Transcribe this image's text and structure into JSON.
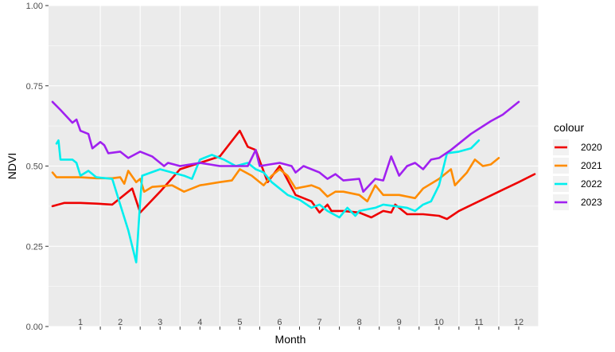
{
  "chart_data": {
    "type": "line",
    "xlabel": "Month",
    "ylabel": "NDVI",
    "ylim": [
      0,
      1
    ],
    "xlim": [
      0.2,
      12.5
    ],
    "y_ticks": [
      "0.00",
      "0.25",
      "0.50",
      "0.75",
      "1.00"
    ],
    "month_labels": [
      "1",
      "2",
      "3",
      "4",
      "5",
      "6",
      "7",
      "8",
      "9",
      "10",
      "11",
      "12"
    ],
    "legend": {
      "title": "colour",
      "position": "right"
    },
    "grid": true,
    "series": [
      {
        "name": "2020",
        "color": "#ee0000",
        "points": [
          [
            0.3,
            0.375
          ],
          [
            0.6,
            0.385
          ],
          [
            1.0,
            0.385
          ],
          [
            1.4,
            0.383
          ],
          [
            1.8,
            0.38
          ],
          [
            2.3,
            0.43
          ],
          [
            2.5,
            0.355
          ],
          [
            3.0,
            0.42
          ],
          [
            3.5,
            0.49
          ],
          [
            4.0,
            0.51
          ],
          [
            4.5,
            0.53
          ],
          [
            5.0,
            0.61
          ],
          [
            5.2,
            0.56
          ],
          [
            5.4,
            0.55
          ],
          [
            5.7,
            0.45
          ],
          [
            6.0,
            0.5
          ],
          [
            6.1,
            0.48
          ],
          [
            6.4,
            0.41
          ],
          [
            6.8,
            0.39
          ],
          [
            7.0,
            0.355
          ],
          [
            7.2,
            0.38
          ],
          [
            7.3,
            0.36
          ],
          [
            7.6,
            0.36
          ],
          [
            8.0,
            0.355
          ],
          [
            8.3,
            0.34
          ],
          [
            8.6,
            0.36
          ],
          [
            8.8,
            0.355
          ],
          [
            8.9,
            0.38
          ],
          [
            9.2,
            0.35
          ],
          [
            9.6,
            0.35
          ],
          [
            10.0,
            0.345
          ],
          [
            10.2,
            0.335
          ],
          [
            10.5,
            0.36
          ],
          [
            11.0,
            0.39
          ],
          [
            11.5,
            0.42
          ],
          [
            12.0,
            0.45
          ],
          [
            12.4,
            0.475
          ]
        ]
      },
      {
        "name": "2021",
        "color": "#ff8c00",
        "points": [
          [
            0.3,
            0.48
          ],
          [
            0.4,
            0.465
          ],
          [
            0.8,
            0.465
          ],
          [
            1.0,
            0.465
          ],
          [
            1.4,
            0.462
          ],
          [
            1.8,
            0.462
          ],
          [
            2.0,
            0.465
          ],
          [
            2.1,
            0.445
          ],
          [
            2.2,
            0.485
          ],
          [
            2.4,
            0.45
          ],
          [
            2.5,
            0.46
          ],
          [
            2.6,
            0.42
          ],
          [
            2.8,
            0.435
          ],
          [
            3.3,
            0.44
          ],
          [
            3.6,
            0.42
          ],
          [
            4.0,
            0.44
          ],
          [
            4.5,
            0.45
          ],
          [
            4.8,
            0.455
          ],
          [
            5.0,
            0.49
          ],
          [
            5.3,
            0.47
          ],
          [
            5.6,
            0.44
          ],
          [
            5.8,
            0.47
          ],
          [
            6.0,
            0.49
          ],
          [
            6.2,
            0.47
          ],
          [
            6.4,
            0.43
          ],
          [
            6.8,
            0.44
          ],
          [
            7.0,
            0.43
          ],
          [
            7.2,
            0.405
          ],
          [
            7.4,
            0.42
          ],
          [
            7.6,
            0.42
          ],
          [
            8.0,
            0.41
          ],
          [
            8.2,
            0.39
          ],
          [
            8.4,
            0.44
          ],
          [
            8.6,
            0.41
          ],
          [
            9.0,
            0.41
          ],
          [
            9.4,
            0.4
          ],
          [
            9.6,
            0.43
          ],
          [
            10.0,
            0.46
          ],
          [
            10.3,
            0.49
          ],
          [
            10.4,
            0.44
          ],
          [
            10.7,
            0.48
          ],
          [
            10.9,
            0.52
          ],
          [
            11.1,
            0.5
          ],
          [
            11.3,
            0.505
          ],
          [
            11.5,
            0.525
          ]
        ]
      },
      {
        "name": "2022",
        "color": "#00eeee",
        "points": [
          [
            0.4,
            0.57
          ],
          [
            0.45,
            0.58
          ],
          [
            0.5,
            0.52
          ],
          [
            0.8,
            0.52
          ],
          [
            0.9,
            0.51
          ],
          [
            1.0,
            0.47
          ],
          [
            1.2,
            0.485
          ],
          [
            1.4,
            0.465
          ],
          [
            1.8,
            0.46
          ],
          [
            2.0,
            0.38
          ],
          [
            2.2,
            0.3
          ],
          [
            2.4,
            0.2
          ],
          [
            2.5,
            0.39
          ],
          [
            2.55,
            0.47
          ],
          [
            3.0,
            0.49
          ],
          [
            3.3,
            0.48
          ],
          [
            3.6,
            0.47
          ],
          [
            3.8,
            0.46
          ],
          [
            4.0,
            0.52
          ],
          [
            4.3,
            0.535
          ],
          [
            4.6,
            0.52
          ],
          [
            4.9,
            0.5
          ],
          [
            5.2,
            0.51
          ],
          [
            5.4,
            0.49
          ],
          [
            5.6,
            0.48
          ],
          [
            5.8,
            0.45
          ],
          [
            6.0,
            0.43
          ],
          [
            6.2,
            0.41
          ],
          [
            6.5,
            0.395
          ],
          [
            6.8,
            0.37
          ],
          [
            7.0,
            0.38
          ],
          [
            7.2,
            0.36
          ],
          [
            7.5,
            0.34
          ],
          [
            7.7,
            0.37
          ],
          [
            7.9,
            0.345
          ],
          [
            8.0,
            0.36
          ],
          [
            8.4,
            0.37
          ],
          [
            8.6,
            0.38
          ],
          [
            8.9,
            0.375
          ],
          [
            9.2,
            0.37
          ],
          [
            9.4,
            0.36
          ],
          [
            9.6,
            0.38
          ],
          [
            9.8,
            0.39
          ],
          [
            10.0,
            0.44
          ],
          [
            10.2,
            0.54
          ],
          [
            10.5,
            0.545
          ],
          [
            10.8,
            0.555
          ],
          [
            11.0,
            0.58
          ]
        ]
      },
      {
        "name": "2023",
        "color": "#a020f0",
        "points": [
          [
            0.3,
            0.7
          ],
          [
            0.5,
            0.675
          ],
          [
            0.8,
            0.635
          ],
          [
            0.9,
            0.645
          ],
          [
            1.0,
            0.61
          ],
          [
            1.2,
            0.6
          ],
          [
            1.3,
            0.555
          ],
          [
            1.5,
            0.575
          ],
          [
            1.6,
            0.565
          ],
          [
            1.7,
            0.54
          ],
          [
            2.0,
            0.545
          ],
          [
            2.2,
            0.525
          ],
          [
            2.5,
            0.545
          ],
          [
            2.8,
            0.53
          ],
          [
            3.1,
            0.5
          ],
          [
            3.2,
            0.51
          ],
          [
            3.5,
            0.5
          ],
          [
            4.0,
            0.51
          ],
          [
            4.5,
            0.5
          ],
          [
            5.0,
            0.5
          ],
          [
            5.2,
            0.5
          ],
          [
            5.4,
            0.55
          ],
          [
            5.5,
            0.5
          ],
          [
            6.0,
            0.51
          ],
          [
            6.3,
            0.5
          ],
          [
            6.4,
            0.48
          ],
          [
            6.6,
            0.5
          ],
          [
            6.8,
            0.49
          ],
          [
            7.0,
            0.48
          ],
          [
            7.2,
            0.46
          ],
          [
            7.4,
            0.475
          ],
          [
            7.6,
            0.455
          ],
          [
            8.0,
            0.46
          ],
          [
            8.1,
            0.42
          ],
          [
            8.4,
            0.46
          ],
          [
            8.6,
            0.455
          ],
          [
            8.8,
            0.53
          ],
          [
            9.0,
            0.47
          ],
          [
            9.2,
            0.5
          ],
          [
            9.4,
            0.51
          ],
          [
            9.6,
            0.49
          ],
          [
            9.8,
            0.52
          ],
          [
            10.0,
            0.525
          ],
          [
            10.3,
            0.55
          ],
          [
            10.8,
            0.6
          ],
          [
            11.3,
            0.64
          ],
          [
            11.6,
            0.66
          ],
          [
            12.0,
            0.7
          ]
        ]
      }
    ]
  }
}
